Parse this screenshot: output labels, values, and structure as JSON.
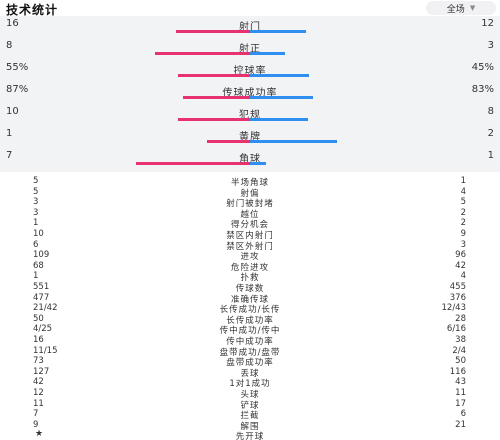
{
  "header": {
    "title": "技术统计",
    "scope": "全场"
  },
  "bar_stats": [
    {
      "label": "射门",
      "left": 16,
      "right": 12,
      "left_text": "16",
      "right_text": "12"
    },
    {
      "label": "射正",
      "left": 8,
      "right": 3,
      "left_text": "8",
      "right_text": "3"
    },
    {
      "label": "控球率",
      "left": 55,
      "right": 45,
      "left_text": "55%",
      "right_text": "45%"
    },
    {
      "label": "传球成功率",
      "left": 87,
      "right": 83,
      "left_text": "87%",
      "right_text": "83%"
    },
    {
      "label": "犯规",
      "left": 10,
      "right": 8,
      "left_text": "10",
      "right_text": "8"
    },
    {
      "label": "黄牌",
      "left": 1,
      "right": 2,
      "left_text": "1",
      "right_text": "2"
    },
    {
      "label": "角球",
      "left": 7,
      "right": 1,
      "left_text": "7",
      "right_text": "1"
    }
  ],
  "stats": [
    {
      "label": "半场角球",
      "left": "5",
      "right": "1"
    },
    {
      "label": "射偏",
      "left": "5",
      "right": "4"
    },
    {
      "label": "射门被封堵",
      "left": "3",
      "right": "5"
    },
    {
      "label": "越位",
      "left": "3",
      "right": "2"
    },
    {
      "label": "得分机会",
      "left": "1",
      "right": "2"
    },
    {
      "label": "禁区内射门",
      "left": "10",
      "right": "9"
    },
    {
      "label": "禁区外射门",
      "left": "6",
      "right": "3"
    },
    {
      "label": "进攻",
      "left": "109",
      "right": "96"
    },
    {
      "label": "危险进攻",
      "left": "68",
      "right": "42"
    },
    {
      "label": "扑救",
      "left": "1",
      "right": "4"
    },
    {
      "label": "传球数",
      "left": "551",
      "right": "455"
    },
    {
      "label": "准确传球",
      "left": "477",
      "right": "376"
    },
    {
      "label": "长传成功/长传",
      "left": "21/42",
      "right": "12/43"
    },
    {
      "label": "长传成功率",
      "left": "50",
      "right": "28"
    },
    {
      "label": "传中成功/传中",
      "left": "4/25",
      "right": "6/16"
    },
    {
      "label": "传中成功率",
      "left": "16",
      "right": "38"
    },
    {
      "label": "盘带成功/盘带",
      "left": "11/15",
      "right": "2/4"
    },
    {
      "label": "盘带成功率",
      "left": "73",
      "right": "50"
    },
    {
      "label": "丢球",
      "left": "127",
      "right": "116"
    },
    {
      "label": "1对1成功",
      "left": "42",
      "right": "43"
    },
    {
      "label": "头球",
      "left": "12",
      "right": "11"
    },
    {
      "label": "铲球",
      "left": "11",
      "right": "17"
    },
    {
      "label": "拦截",
      "left": "7",
      "right": "6"
    },
    {
      "label": "解围",
      "left": "9",
      "right": "21"
    },
    {
      "label": "先开球",
      "left": "★",
      "right": ""
    }
  ],
  "colors": {
    "left": "#e8326f",
    "right": "#2f8ff0",
    "row_bg": "#f2f3f5"
  },
  "chart_data": {
    "type": "bar",
    "categories": [
      "射门",
      "射正",
      "控球率",
      "传球成功率",
      "犯规",
      "黄牌",
      "角球"
    ],
    "series": [
      {
        "values": [
          16,
          8,
          55,
          87,
          10,
          1,
          7
        ]
      },
      {
        "values": [
          12,
          3,
          45,
          83,
          8,
          2,
          1
        ]
      }
    ]
  }
}
